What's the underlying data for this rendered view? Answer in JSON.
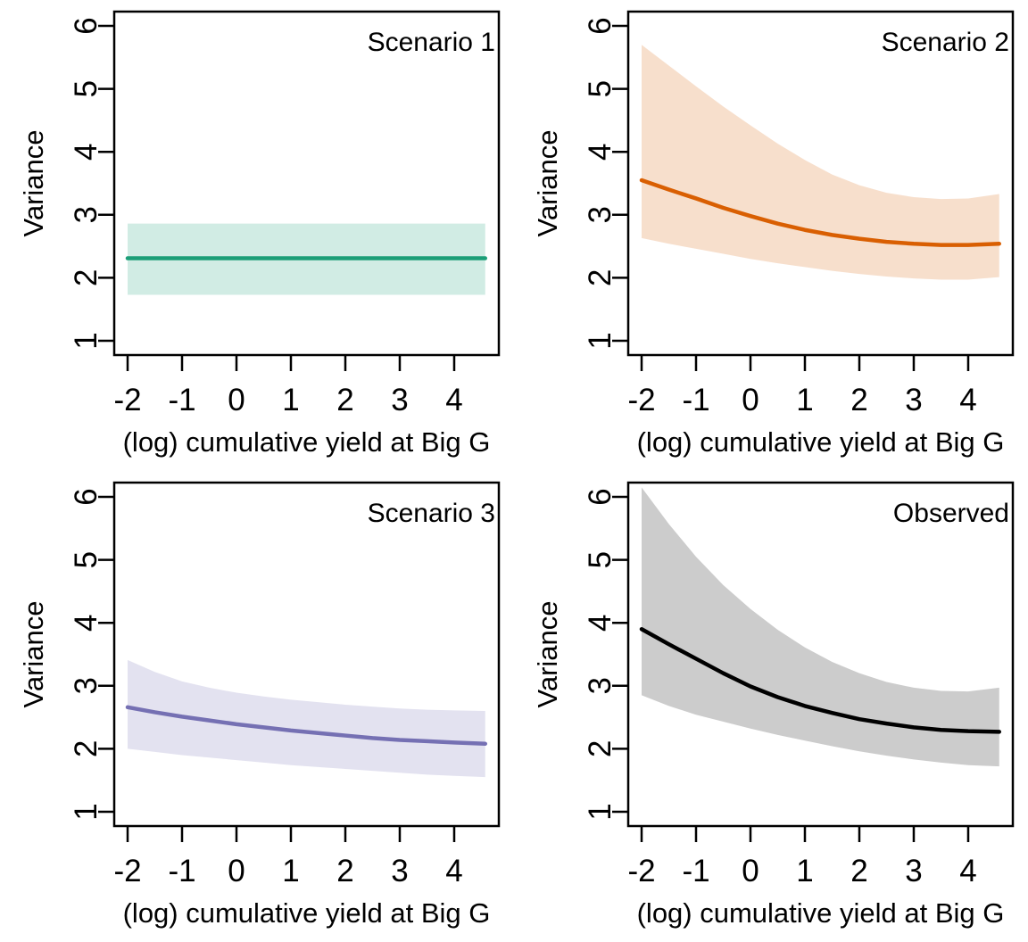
{
  "figure": {
    "ylabel": "Variance",
    "xlabel": "(log) cumulative yield at Big G",
    "x_tick_labels": [
      "-2",
      "-1",
      "0",
      "1",
      "2",
      "3",
      "4"
    ],
    "y_tick_labels": [
      "1",
      "2",
      "3",
      "4",
      "5",
      "6"
    ],
    "text_color": "#000000",
    "background_color": "#ffffff",
    "band_opacity": 0.2
  },
  "chart_data": [
    {
      "type": "line",
      "panel_label": "Scenario 1",
      "line_color": "#1B9E77",
      "band_color": "#1B9E77",
      "band_opacity": 0.2,
      "xlabel": "(log) cumulative yield at Big G",
      "ylabel": "Variance",
      "x_ticks": [
        -2,
        -1,
        0,
        1,
        2,
        3,
        4
      ],
      "y_ticks": [
        1,
        2,
        3,
        4,
        5,
        6
      ],
      "xlim": [
        -2.25,
        4.82
      ],
      "ylim": [
        0.77,
        6.23
      ],
      "legend_position": "none",
      "grid": false,
      "x": [
        -2,
        -1.5,
        -1,
        -0.5,
        0,
        0.5,
        1,
        1.5,
        2,
        2.5,
        3,
        3.5,
        4,
        4.57
      ],
      "mean": [
        2.31,
        2.31,
        2.31,
        2.31,
        2.31,
        2.31,
        2.31,
        2.31,
        2.31,
        2.31,
        2.31,
        2.31,
        2.31,
        2.31
      ],
      "upper": [
        2.86,
        2.86,
        2.86,
        2.86,
        2.86,
        2.86,
        2.86,
        2.86,
        2.86,
        2.86,
        2.86,
        2.86,
        2.86,
        2.86
      ],
      "lower": [
        1.73,
        1.73,
        1.73,
        1.73,
        1.73,
        1.73,
        1.73,
        1.73,
        1.73,
        1.73,
        1.73,
        1.73,
        1.73,
        1.73
      ]
    },
    {
      "type": "line",
      "panel_label": "Scenario 2",
      "line_color": "#D95F02",
      "band_color": "#D95F02",
      "band_opacity": 0.2,
      "xlabel": "(log) cumulative yield at Big G",
      "ylabel": "Variance",
      "x_ticks": [
        -2,
        -1,
        0,
        1,
        2,
        3,
        4
      ],
      "y_ticks": [
        1,
        2,
        3,
        4,
        5,
        6
      ],
      "xlim": [
        -2.25,
        4.82
      ],
      "ylim": [
        0.77,
        6.23
      ],
      "legend_position": "none",
      "grid": false,
      "x": [
        -2,
        -1.5,
        -1,
        -0.5,
        0,
        0.5,
        1,
        1.5,
        2,
        2.5,
        3,
        3.5,
        4,
        4.57
      ],
      "mean": [
        3.55,
        3.4,
        3.26,
        3.11,
        2.98,
        2.86,
        2.76,
        2.68,
        2.62,
        2.57,
        2.54,
        2.52,
        2.52,
        2.54
      ],
      "upper": [
        5.7,
        5.37,
        5.04,
        4.72,
        4.42,
        4.13,
        3.87,
        3.64,
        3.47,
        3.35,
        3.28,
        3.25,
        3.26,
        3.33
      ],
      "lower": [
        2.63,
        2.54,
        2.46,
        2.38,
        2.3,
        2.23,
        2.17,
        2.11,
        2.06,
        2.02,
        1.99,
        1.97,
        1.97,
        2.01
      ]
    },
    {
      "type": "line",
      "panel_label": "Scenario 3",
      "line_color": "#7570B3",
      "band_color": "#7570B3",
      "band_opacity": 0.2,
      "xlabel": "(log) cumulative yield at Big G",
      "ylabel": "Variance",
      "x_ticks": [
        -2,
        -1,
        0,
        1,
        2,
        3,
        4
      ],
      "y_ticks": [
        1,
        2,
        3,
        4,
        5,
        6
      ],
      "xlim": [
        -2.25,
        4.82
      ],
      "ylim": [
        0.77,
        6.23
      ],
      "legend_position": "none",
      "grid": false,
      "x": [
        -2,
        -1.5,
        -1,
        -0.5,
        0,
        0.5,
        1,
        1.5,
        2,
        2.5,
        3,
        3.5,
        4,
        4.57
      ],
      "mean": [
        2.66,
        2.58,
        2.51,
        2.45,
        2.39,
        2.34,
        2.29,
        2.25,
        2.21,
        2.17,
        2.14,
        2.12,
        2.1,
        2.08
      ],
      "upper": [
        3.41,
        3.22,
        3.07,
        2.97,
        2.89,
        2.83,
        2.78,
        2.74,
        2.7,
        2.67,
        2.64,
        2.62,
        2.61,
        2.6
      ],
      "lower": [
        2.0,
        1.95,
        1.9,
        1.86,
        1.82,
        1.78,
        1.74,
        1.71,
        1.68,
        1.65,
        1.62,
        1.59,
        1.57,
        1.55
      ]
    },
    {
      "type": "line",
      "panel_label": "Observed",
      "line_color": "#000000",
      "band_color": "#000000",
      "band_opacity": 0.2,
      "xlabel": "(log) cumulative yield at Big G",
      "ylabel": "Variance",
      "x_ticks": [
        -2,
        -1,
        0,
        1,
        2,
        3,
        4
      ],
      "y_ticks": [
        1,
        2,
        3,
        4,
        5,
        6
      ],
      "xlim": [
        -2.25,
        4.82
      ],
      "ylim": [
        0.77,
        6.23
      ],
      "legend_position": "none",
      "grid": false,
      "x": [
        -2,
        -1.5,
        -1,
        -0.5,
        0,
        0.5,
        1,
        1.5,
        2,
        2.5,
        3,
        3.5,
        4,
        4.57
      ],
      "mean": [
        3.9,
        3.66,
        3.43,
        3.2,
        2.99,
        2.82,
        2.68,
        2.57,
        2.47,
        2.4,
        2.34,
        2.3,
        2.28,
        2.27
      ],
      "upper": [
        6.15,
        5.57,
        5.05,
        4.6,
        4.22,
        3.89,
        3.61,
        3.38,
        3.2,
        3.06,
        2.97,
        2.92,
        2.91,
        2.97
      ],
      "lower": [
        2.85,
        2.68,
        2.54,
        2.43,
        2.32,
        2.22,
        2.13,
        2.04,
        1.96,
        1.89,
        1.83,
        1.78,
        1.74,
        1.72
      ]
    }
  ]
}
